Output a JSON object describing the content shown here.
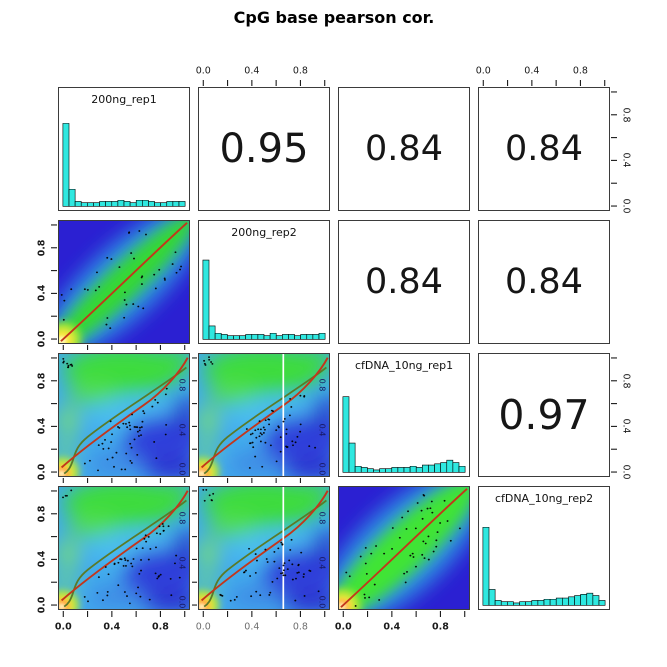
{
  "title": "CpG base pearson cor.",
  "colors": {
    "hist_fill": "#2FE8E0",
    "panel_border": "#3b3b3b",
    "deep_blue": "#2B20D2",
    "light_blue": "#41A9EC",
    "band_green": "#35D835",
    "band_green_bright": "#3FE434",
    "band_fringe_cyan": "#2E9BE4",
    "blob_green": "#3EDC3E",
    "hot_yellow": "#FFE63C",
    "hot_orange": "#FF9E30",
    "hot_core": "#FFFCC4",
    "lowess_red": "#C3361B",
    "lowess_olive": "#5A7A28",
    "inner_axis_label": "#171760",
    "white_line": "#FFFFFF",
    "dot": "#000000",
    "bottom_label_colors": [
      "#1b1b1b",
      "#6f6f6f",
      "#1b1b1b"
    ],
    "axis_tick": "#1a1a1a"
  },
  "chart_data": [
    {
      "type": "scatter",
      "subtype": "pairs-matrix-smoothscatter",
      "title": "CpG base pearson cor.",
      "variables": [
        "200ng_rep1",
        "200ng_rep2",
        "cfDNA_10ng_rep1",
        "cfDNA_10ng_rep2"
      ],
      "axis_range": [
        0,
        1
      ],
      "axis_tick_step": 0.2,
      "axis_tick_labels": [
        "0.0",
        "0.4",
        "0.8"
      ],
      "axis_label_values": [
        0,
        0.4,
        0.8
      ],
      "axes_sides": {
        "top_columns": [
          2,
          4
        ],
        "bottom_columns": [
          1,
          2,
          3
        ],
        "left_rows": [
          2,
          3,
          4
        ],
        "right_rows": [
          1,
          3
        ]
      },
      "bottom_label_weights": [
        700,
        400,
        700
      ],
      "correlations": [
        {
          "x": "200ng_rep1",
          "y": "200ng_rep2",
          "r": 0.95
        },
        {
          "x": "200ng_rep1",
          "y": "cfDNA_10ng_rep1",
          "r": 0.84
        },
        {
          "x": "200ng_rep1",
          "y": "cfDNA_10ng_rep2",
          "r": 0.84
        },
        {
          "x": "200ng_rep2",
          "y": "cfDNA_10ng_rep1",
          "r": 0.84
        },
        {
          "x": "200ng_rep2",
          "y": "cfDNA_10ng_rep2",
          "r": 0.84
        },
        {
          "x": "cfDNA_10ng_rep1",
          "y": "cfDNA_10ng_rep2",
          "r": 0.97
        }
      ],
      "inner_axis_labels": [
        "0.8",
        "0.4",
        "0.0"
      ],
      "inner_axis_label_values": [
        0.8,
        0.4,
        0.0
      ],
      "cells": [
        [
          {
            "kind": "hist",
            "var": 0
          },
          {
            "kind": "cor",
            "pair": 0
          },
          {
            "kind": "cor",
            "pair": 1
          },
          {
            "kind": "cor",
            "pair": 2
          }
        ],
        [
          {
            "kind": "smooth",
            "style": "band",
            "bottom_ticks": true
          },
          {
            "kind": "hist",
            "var": 1
          },
          {
            "kind": "cor",
            "pair": 3
          },
          {
            "kind": "cor",
            "pair": 4
          }
        ],
        [
          {
            "kind": "smooth",
            "style": "cloud",
            "inner_labels": true,
            "bottom_ticks": true
          },
          {
            "kind": "smooth",
            "style": "cloud",
            "inner_labels": true,
            "bottom_ticks": true,
            "left_ticks": true,
            "white_vline_x": 0.66
          },
          {
            "kind": "hist",
            "var": 2
          },
          {
            "kind": "cor",
            "pair": 5
          }
        ],
        [
          {
            "kind": "smooth",
            "style": "cloud",
            "inner_labels": true
          },
          {
            "kind": "smooth",
            "style": "cloud",
            "inner_labels": true,
            "left_ticks": true,
            "white_vline_x": 0.66
          },
          {
            "kind": "smooth",
            "style": "band",
            "bright": true
          },
          {
            "kind": "hist",
            "var": 3
          }
        ]
      ]
    },
    {
      "type": "bar",
      "role": "diagonal-histogram",
      "title": "200ng_rep1",
      "x_range": [
        0,
        1
      ],
      "n_bins": 20,
      "bar_heights_frac": [
        0.68,
        0.14,
        0.04,
        0.03,
        0.03,
        0.03,
        0.04,
        0.04,
        0.04,
        0.05,
        0.04,
        0.03,
        0.05,
        0.05,
        0.04,
        0.03,
        0.03,
        0.04,
        0.04,
        0.04
      ]
    },
    {
      "type": "bar",
      "role": "diagonal-histogram",
      "title": "200ng_rep2",
      "x_range": [
        0,
        1
      ],
      "n_bins": 20,
      "bar_heights_frac": [
        0.65,
        0.11,
        0.05,
        0.04,
        0.03,
        0.03,
        0.03,
        0.04,
        0.04,
        0.04,
        0.03,
        0.05,
        0.03,
        0.04,
        0.04,
        0.03,
        0.04,
        0.04,
        0.04,
        0.05
      ]
    },
    {
      "type": "bar",
      "role": "diagonal-histogram",
      "title": "cfDNA_10ng_rep1",
      "x_range": [
        0,
        1
      ],
      "n_bins": 20,
      "bar_heights_frac": [
        0.62,
        0.24,
        0.05,
        0.04,
        0.03,
        0.02,
        0.03,
        0.03,
        0.04,
        0.04,
        0.04,
        0.05,
        0.04,
        0.06,
        0.06,
        0.07,
        0.08,
        0.1,
        0.08,
        0.05
      ]
    },
    {
      "type": "bar",
      "role": "diagonal-histogram",
      "title": "cfDNA_10ng_rep2",
      "x_range": [
        0,
        1
      ],
      "n_bins": 20,
      "bar_heights_frac": [
        0.64,
        0.13,
        0.04,
        0.03,
        0.03,
        0.02,
        0.03,
        0.03,
        0.04,
        0.04,
        0.05,
        0.05,
        0.06,
        0.06,
        0.07,
        0.08,
        0.09,
        0.1,
        0.08,
        0.04
      ]
    }
  ]
}
